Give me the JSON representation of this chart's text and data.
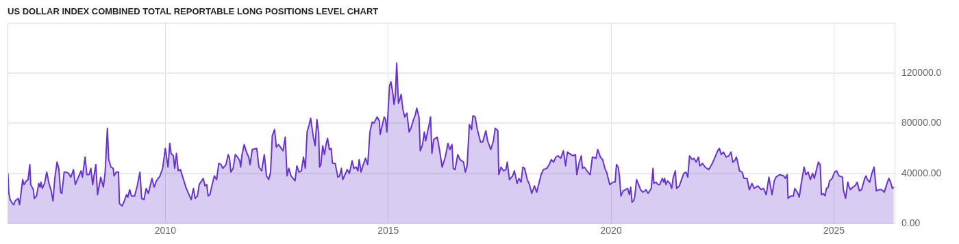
{
  "chart_data": {
    "type": "area",
    "title": "US DOLLAR INDEX COMBINED TOTAL REPORTABLE LONG POSITIONS LEVEL CHART",
    "color": "#6633cc",
    "grid": true,
    "xlim": [
      2006.46,
      2026.36
    ],
    "xticks": [
      2010,
      2015,
      2020,
      2025
    ],
    "ylim": [
      0,
      160000
    ],
    "yticks": [
      {
        "value": 0,
        "label": "0.00"
      },
      {
        "value": 40000,
        "label": "40000.00"
      },
      {
        "value": 80000,
        "label": "80000.00"
      },
      {
        "value": 120000,
        "label": "120000.0"
      }
    ],
    "x": [
      2006.47,
      2006.49,
      2006.52,
      2006.57,
      2006.6,
      2006.63,
      2006.7,
      2006.73,
      2006.8,
      2006.83,
      2006.88,
      2006.92,
      2006.96,
      2006.98,
      2007.04,
      2007.06,
      2007.11,
      2007.16,
      2007.19,
      2007.21,
      2007.24,
      2007.29,
      2007.34,
      2007.39,
      2007.44,
      2007.48,
      2007.52,
      2007.57,
      2007.61,
      2007.65,
      2007.68,
      2007.73,
      2007.78,
      2007.83,
      2007.88,
      2007.94,
      2007.98,
      2008.06,
      2008.11,
      2008.14,
      2008.2,
      2008.24,
      2008.29,
      2008.33,
      2008.37,
      2008.39,
      2008.44,
      2008.48,
      2008.55,
      2008.61,
      2008.65,
      2008.7,
      2008.73,
      2008.78,
      2008.83,
      2008.85,
      2008.9,
      2008.95,
      2008.97,
      2009.03,
      2009.08,
      2009.13,
      2009.16,
      2009.2,
      2009.24,
      2009.31,
      2009.37,
      2009.43,
      2009.47,
      2009.52,
      2009.57,
      2009.62,
      2009.7,
      2009.75,
      2009.8,
      2009.88,
      2009.94,
      2010.0,
      2010.06,
      2010.1,
      2010.13,
      2010.18,
      2010.21,
      2010.25,
      2010.29,
      2010.34,
      2010.39,
      2010.47,
      2010.58,
      2010.63,
      2010.67,
      2010.72,
      2010.76,
      2010.85,
      2010.89,
      2010.93,
      2010.96,
      2011.0,
      2011.05,
      2011.1,
      2011.15,
      2011.2,
      2011.25,
      2011.29,
      2011.36,
      2011.41,
      2011.44,
      2011.47,
      2011.52,
      2011.57,
      2011.62,
      2011.67,
      2011.69,
      2011.72,
      2011.77,
      2011.82,
      2011.87,
      2011.9,
      2011.95,
      2012.05,
      2012.1,
      2012.16,
      2012.22,
      2012.27,
      2012.32,
      2012.36,
      2012.4,
      2012.45,
      2012.49,
      2012.54,
      2012.58,
      2012.64,
      2012.69,
      2012.73,
      2012.77,
      2012.82,
      2012.91,
      2012.95,
      2013.0,
      2013.05,
      2013.1,
      2013.14,
      2013.18,
      2013.22,
      2013.26,
      2013.32,
      2013.36,
      2013.4,
      2013.44,
      2013.46,
      2013.49,
      2013.53,
      2013.57,
      2013.61,
      2013.64,
      2013.68,
      2013.72,
      2013.75,
      2013.81,
      2013.87,
      2013.91,
      2013.95,
      2013.98,
      2014.03,
      2014.08,
      2014.13,
      2014.19,
      2014.23,
      2014.28,
      2014.32,
      2014.35,
      2014.39,
      2014.44,
      2014.49,
      2014.54,
      2014.59,
      2014.64,
      2014.68,
      2014.75,
      2014.8,
      2014.82,
      2014.87,
      2014.91,
      2014.94,
      2014.97,
      2015.03,
      2015.06,
      2015.1,
      2015.13,
      2015.16,
      2015.19,
      2015.23,
      2015.26,
      2015.29,
      2015.33,
      2015.37,
      2015.42,
      2015.47,
      2015.51,
      2015.56,
      2015.61,
      2015.64,
      2015.69,
      2015.72,
      2015.77,
      2015.81,
      2015.84,
      2015.9,
      2015.95,
      2015.98,
      2016.02,
      2016.1,
      2016.15,
      2016.21,
      2016.28,
      2016.34,
      2016.38,
      2016.43,
      2016.46,
      2016.5,
      2016.56,
      2016.61,
      2016.69,
      2016.73,
      2016.77,
      2016.82,
      2016.87,
      2016.9,
      2016.95,
      2017.0,
      2017.07,
      2017.12,
      2017.19,
      2017.23,
      2017.3,
      2017.36,
      2017.4,
      2017.46,
      2017.48,
      2017.53,
      2017.59,
      2017.64,
      2017.67,
      2017.72,
      2017.79,
      2017.83,
      2017.89,
      2017.93,
      2017.98,
      2018.02,
      2018.06,
      2018.12,
      2018.17,
      2018.22,
      2018.28,
      2018.33,
      2018.43,
      2018.48,
      2018.56,
      2018.61,
      2018.66,
      2018.71,
      2018.76,
      2018.81,
      2018.87,
      2018.93,
      2018.98,
      2019.02,
      2019.1,
      2019.15,
      2019.2,
      2019.23,
      2019.28,
      2019.33,
      2019.36,
      2019.4,
      2019.48,
      2019.53,
      2019.58,
      2019.66,
      2019.7,
      2019.76,
      2019.81,
      2019.86,
      2019.9,
      2019.97,
      2020.04,
      2020.09,
      2020.12,
      2020.16,
      2020.19,
      2020.22,
      2020.27,
      2020.37,
      2020.41,
      2020.44,
      2020.47,
      2020.5,
      2020.53,
      2020.57,
      2020.63,
      2020.66,
      2020.71,
      2020.76,
      2020.78,
      2020.83,
      2020.9,
      2020.94,
      2020.96,
      2021.01,
      2021.05,
      2021.09,
      2021.15,
      2021.18,
      2021.2,
      2021.23,
      2021.27,
      2021.32,
      2021.36,
      2021.39,
      2021.44,
      2021.47,
      2021.53,
      2021.58,
      2021.63,
      2021.68,
      2021.72,
      2021.76,
      2021.82,
      2021.86,
      2021.91,
      2021.96,
      2021.99,
      2022.05,
      2022.11,
      2022.19,
      2022.27,
      2022.32,
      2022.39,
      2022.43,
      2022.47,
      2022.52,
      2022.58,
      2022.64,
      2022.69,
      2022.73,
      2022.77,
      2022.81,
      2022.84,
      2022.88,
      2022.94,
      2022.98,
      2023.05,
      2023.1,
      2023.16,
      2023.21,
      2023.29,
      2023.37,
      2023.42,
      2023.48,
      2023.54,
      2023.61,
      2023.66,
      2023.7,
      2023.78,
      2023.87,
      2023.91,
      2023.95,
      2023.97,
      2024.03,
      2024.09,
      2024.12,
      2024.19,
      2024.22,
      2024.27,
      2024.33,
      2024.37,
      2024.42,
      2024.47,
      2024.52,
      2024.56,
      2024.6,
      2024.65,
      2024.69,
      2024.72,
      2024.76,
      2024.8,
      2024.83,
      2024.87,
      2024.9,
      2024.96,
      2025.01,
      2025.06,
      2025.11,
      2025.19,
      2025.21,
      2025.26,
      2025.31,
      2025.34,
      2025.37,
      2025.42,
      2025.47,
      2025.52,
      2025.57,
      2025.62,
      2025.69,
      2025.72,
      2025.75,
      2025.8,
      2025.85,
      2025.9,
      2025.95,
      2026.01,
      2026.07,
      2026.13,
      2026.18,
      2026.23,
      2026.27,
      2026.31,
      2026.34
    ],
    "values": [
      40000,
      24000,
      19000,
      16000,
      15000,
      18000,
      20000,
      15000,
      35000,
      31000,
      34000,
      35000,
      47000,
      31000,
      27000,
      20000,
      22000,
      32000,
      29000,
      33000,
      28000,
      32000,
      41000,
      32000,
      26000,
      18000,
      36000,
      49000,
      44000,
      25000,
      24000,
      41000,
      41000,
      40000,
      37000,
      43000,
      31000,
      38000,
      42000,
      37000,
      53000,
      39000,
      39000,
      44000,
      31000,
      36000,
      47000,
      23000,
      37000,
      29000,
      41000,
      76000,
      51000,
      45000,
      44000,
      38000,
      41000,
      41000,
      16000,
      14000,
      18000,
      23000,
      21000,
      27000,
      22000,
      22000,
      30000,
      41000,
      20000,
      19000,
      28000,
      24000,
      36000,
      29000,
      34000,
      38000,
      44000,
      60000,
      45000,
      64000,
      56000,
      54000,
      44000,
      56000,
      42000,
      43000,
      37000,
      28000,
      19000,
      28000,
      20000,
      22000,
      31000,
      36000,
      30000,
      31000,
      22000,
      23000,
      31000,
      38000,
      35000,
      48000,
      47000,
      44000,
      47000,
      55000,
      52000,
      41000,
      44000,
      55000,
      53000,
      50000,
      45000,
      55000,
      63000,
      57000,
      53000,
      47000,
      59000,
      60000,
      45000,
      42000,
      55000,
      38000,
      35000,
      41000,
      70000,
      75000,
      61000,
      63000,
      61000,
      58000,
      69000,
      38000,
      44000,
      38000,
      34000,
      46000,
      41000,
      42000,
      53000,
      44000,
      73000,
      78000,
      84000,
      69000,
      62000,
      83000,
      72000,
      45000,
      47000,
      62000,
      55000,
      64000,
      68000,
      59000,
      60000,
      48000,
      48000,
      37000,
      38000,
      44000,
      35000,
      39000,
      43000,
      40000,
      50000,
      44000,
      45000,
      42000,
      51000,
      41000,
      47000,
      52000,
      47000,
      73000,
      81000,
      80000,
      85000,
      82000,
      71000,
      79000,
      85000,
      83000,
      73000,
      110000,
      113000,
      105000,
      95000,
      102000,
      128000,
      96000,
      99000,
      103000,
      91000,
      85000,
      88000,
      73000,
      76000,
      82000,
      87000,
      92000,
      85000,
      58000,
      63000,
      73000,
      66000,
      76000,
      85000,
      56000,
      67000,
      69000,
      59000,
      45000,
      53000,
      64000,
      59000,
      63000,
      44000,
      43000,
      55000,
      51000,
      49000,
      41000,
      46000,
      79000,
      75000,
      86000,
      85000,
      75000,
      65000,
      65000,
      74000,
      66000,
      59000,
      66000,
      76000,
      74000,
      39000,
      45000,
      42000,
      43000,
      49000,
      35000,
      38000,
      42000,
      32000,
      36000,
      33000,
      45000,
      44000,
      35000,
      31000,
      24000,
      30000,
      25000,
      39000,
      43000,
      44000,
      47000,
      51000,
      49000,
      53000,
      54000,
      52000,
      58000,
      46000,
      57000,
      55000,
      54000,
      55000,
      39000,
      48000,
      54000,
      44000,
      45000,
      41000,
      39000,
      53000,
      52000,
      59000,
      53000,
      51000,
      44000,
      41000,
      31000,
      33000,
      33000,
      47000,
      45000,
      37000,
      22000,
      26000,
      28000,
      23000,
      29000,
      17000,
      18000,
      21000,
      35000,
      30000,
      27000,
      25000,
      26000,
      27000,
      24000,
      28000,
      44000,
      32000,
      33000,
      31000,
      31000,
      36000,
      33000,
      36000,
      31000,
      34000,
      32000,
      28000,
      36000,
      42000,
      28000,
      30000,
      35000,
      40000,
      41000,
      37000,
      54000,
      51000,
      52000,
      49000,
      53000,
      46000,
      48000,
      45000,
      43000,
      48000,
      52000,
      58000,
      60000,
      55000,
      57000,
      53000,
      54000,
      57000,
      49000,
      50000,
      53000,
      49000,
      42000,
      41000,
      36000,
      36000,
      27000,
      32000,
      28000,
      30000,
      27000,
      28000,
      23000,
      37000,
      23000,
      34000,
      37000,
      39000,
      38000,
      36000,
      39000,
      20000,
      22000,
      22000,
      28000,
      24000,
      21000,
      33000,
      45000,
      39000,
      41000,
      35000,
      40000,
      36000,
      42000,
      49000,
      47000,
      23000,
      24000,
      22000,
      28000,
      29000,
      34000,
      36000,
      41000,
      42000,
      38000,
      37000,
      27000,
      20000,
      33000,
      29000,
      27000,
      29000,
      30000,
      33000,
      26000,
      27000,
      36000,
      38000,
      35000,
      33000,
      40000,
      45000,
      26000,
      27000,
      27000,
      25000,
      31000,
      36000,
      33000,
      28000,
      29000
    ]
  }
}
